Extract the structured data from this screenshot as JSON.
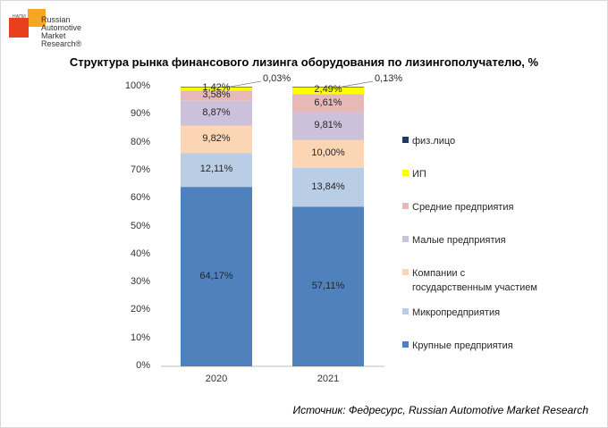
{
  "logo": {
    "small_text": "НАПИ",
    "name": "Russian\nAutomotive\nMarket\nResearch®"
  },
  "chart_data": {
    "type": "bar",
    "stacked": true,
    "title": "Структура рынка финансового лизинга оборудования по лизингополучателю, %",
    "categories": [
      "2020",
      "2021"
    ],
    "ylim": [
      0,
      100
    ],
    "yticks": [
      "0%",
      "10%",
      "20%",
      "30%",
      "40%",
      "50%",
      "60%",
      "70%",
      "80%",
      "90%",
      "100%"
    ],
    "series": [
      {
        "name": "Крупные предприятия",
        "color": "#4f81bd",
        "values": [
          64.17,
          57.11
        ],
        "labels": [
          "64,17%",
          "57,11%"
        ]
      },
      {
        "name": "Микропредприятия",
        "color": "#b9cde5",
        "values": [
          12.11,
          13.84
        ],
        "labels": [
          "12,11%",
          "13,84%"
        ]
      },
      {
        "name": "Компании с государственным участием",
        "color": "#fcd5b5",
        "values": [
          9.82,
          10.0
        ],
        "labels": [
          "9,82%",
          "10,00%"
        ]
      },
      {
        "name": "Малые предприятия",
        "color": "#ccc1da",
        "values": [
          8.87,
          9.81
        ],
        "labels": [
          "8,87%",
          "9,81%"
        ]
      },
      {
        "name": "Средние предприятия",
        "color": "#e6b9b8",
        "values": [
          3.58,
          6.61
        ],
        "labels": [
          "3,58%",
          "6,61%"
        ]
      },
      {
        "name": "ИП",
        "color": "#ffff00",
        "values": [
          1.42,
          2.49
        ],
        "labels": [
          "1,42%",
          "2,49%"
        ]
      },
      {
        "name": "физ.лицо",
        "color": "#1f3864",
        "values": [
          0.03,
          0.13
        ],
        "labels": [
          "0,03%",
          "0,13%"
        ]
      }
    ],
    "legend_position": "right",
    "legend_lines": [
      [
        "физ.лицо"
      ],
      [
        "ИП"
      ],
      [
        "Средние предприятия"
      ],
      [
        "Малые предприятия"
      ],
      [
        "Компании с",
        "государственным участием"
      ],
      [
        "Микропредприятия"
      ],
      [
        "Крупные предприятия"
      ]
    ],
    "legend_colors": [
      "#1f3864",
      "#ffff00",
      "#e6b9b8",
      "#ccc1da",
      "#fcd5b5",
      "#b9cde5",
      "#4f81bd"
    ],
    "grid": false
  },
  "source": "Источник: Федресурс, Russian Automotive Market Research"
}
